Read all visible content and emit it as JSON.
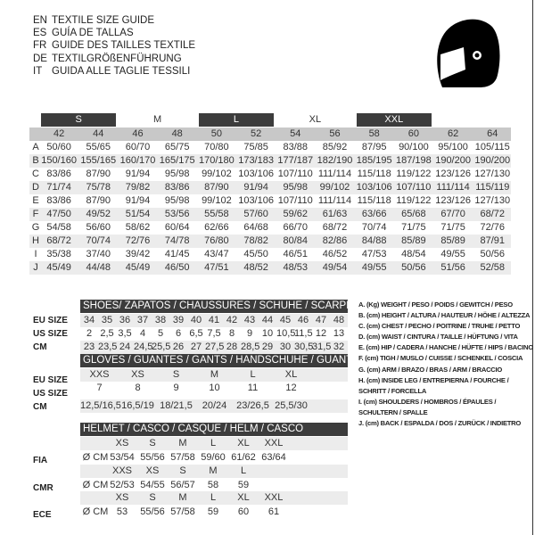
{
  "titles": [
    {
      "lang": "EN",
      "text": "TEXTILE SIZE GUIDE"
    },
    {
      "lang": "ES",
      "text": "GUÍA DE TALLAS"
    },
    {
      "lang": "FR",
      "text": "GUIDE DES TAILLES TEXTILE"
    },
    {
      "lang": "DE",
      "text": "TEXTILGRÖßENFÜHRUNG"
    },
    {
      "lang": "IT",
      "text": "GUIDA ALLE TAGLIE TESSILI"
    }
  ],
  "icon": "helmet-icon",
  "textile": {
    "size_bands": [
      "S",
      "M",
      "L",
      "XL",
      "XXL"
    ],
    "sizes": [
      "42",
      "44",
      "46",
      "48",
      "50",
      "52",
      "54",
      "56",
      "58",
      "60",
      "62",
      "64"
    ],
    "rows": [
      {
        "label": "A",
        "values": [
          "50/60",
          "55/65",
          "60/70",
          "65/75",
          "70/80",
          "75/85",
          "83/88",
          "85/92",
          "87/95",
          "90/100",
          "95/100",
          "105/115"
        ]
      },
      {
        "label": "B",
        "values": [
          "150/160",
          "155/165",
          "160/170",
          "165/175",
          "170/180",
          "173/183",
          "177/187",
          "182/190",
          "185/195",
          "187/198",
          "190/200",
          "190/200"
        ]
      },
      {
        "label": "C",
        "values": [
          "83/86",
          "87/90",
          "91/94",
          "95/98",
          "99/102",
          "103/106",
          "107/110",
          "111/114",
          "115/118",
          "119/122",
          "123/126",
          "127/130"
        ]
      },
      {
        "label": "D",
        "values": [
          "71/74",
          "75/78",
          "79/82",
          "83/86",
          "87/90",
          "91/94",
          "95/98",
          "99/102",
          "103/106",
          "107/110",
          "111/114",
          "115/119"
        ]
      },
      {
        "label": "E",
        "values": [
          "83/86",
          "87/90",
          "91/94",
          "95/98",
          "99/102",
          "103/106",
          "107/110",
          "111/114",
          "115/118",
          "119/122",
          "123/126",
          "127/130"
        ]
      },
      {
        "label": "F",
        "values": [
          "47/50",
          "49/52",
          "51/54",
          "53/56",
          "55/58",
          "57/60",
          "59/62",
          "61/63",
          "63/66",
          "65/68",
          "67/70",
          "68/72"
        ]
      },
      {
        "label": "G",
        "values": [
          "54/58",
          "56/60",
          "58/62",
          "60/64",
          "62/66",
          "64/68",
          "66/70",
          "68/72",
          "70/74",
          "71/75",
          "71/75",
          "72/76"
        ]
      },
      {
        "label": "H",
        "values": [
          "68/72",
          "70/74",
          "72/76",
          "74/78",
          "76/80",
          "78/82",
          "80/84",
          "82/86",
          "84/88",
          "85/89",
          "85/89",
          "87/91"
        ]
      },
      {
        "label": "I",
        "values": [
          "35/38",
          "37/40",
          "39/42",
          "41/45",
          "43/47",
          "45/50",
          "46/51",
          "46/52",
          "47/53",
          "48/54",
          "49/55",
          "50/56"
        ]
      },
      {
        "label": "J",
        "values": [
          "45/49",
          "44/48",
          "45/49",
          "46/50",
          "47/51",
          "48/52",
          "48/53",
          "49/54",
          "49/55",
          "50/56",
          "51/56",
          "52/58"
        ]
      }
    ]
  },
  "shoes": {
    "title": "SHOES/ ZAPATOS / CHAUSSURES / SCHUHE / SCARPE",
    "rows": [
      {
        "label": "EU SIZE",
        "values": [
          "34",
          "35",
          "36",
          "37",
          "38",
          "39",
          "40",
          "41",
          "42",
          "43",
          "44",
          "45",
          "46",
          "47",
          "48"
        ]
      },
      {
        "label": "US SIZE",
        "values": [
          "2",
          "2,5",
          "3,5",
          "4",
          "5",
          "6",
          "6,5",
          "7,5",
          "8",
          "9",
          "10",
          "10,5",
          "11,5",
          "12",
          "13"
        ]
      },
      {
        "label": "CM",
        "values": [
          "23",
          "23,5",
          "24",
          "24,5",
          "25,5",
          "26",
          "27",
          "27,5",
          "28",
          "28,5",
          "29",
          "30",
          "30,5",
          "31,5",
          "32"
        ]
      }
    ]
  },
  "gloves": {
    "title": "GLOVES / GUANTES / GANTS / HANDSCHUHE / GUANTI",
    "rows": [
      {
        "label": "EU SIZE",
        "values": [
          "XXS",
          "XS",
          "S",
          "M",
          "L",
          "XL"
        ]
      },
      {
        "label": "US SIZE",
        "values": [
          "7",
          "8",
          "9",
          "10",
          "11",
          "12"
        ]
      },
      {
        "label": "CM",
        "values": [
          "12,5/16,5",
          "16,5/19",
          "18/21,5",
          "20/24",
          "23/26,5",
          "25,5/30"
        ]
      }
    ]
  },
  "helmet": {
    "title": "HELMET / CASCO / CASQUE / HELM / CASCO",
    "unit": "Ø CM",
    "groups": [
      {
        "label": "FIA",
        "sizes": [
          "XS",
          "S",
          "M",
          "L",
          "XL",
          "XXL"
        ],
        "values": [
          "53/54",
          "55/56",
          "57/58",
          "59/60",
          "61/62",
          "63/64"
        ]
      },
      {
        "label": "CMR",
        "sizes": [
          "XXS",
          "XS",
          "S",
          "M",
          "L"
        ],
        "values": [
          "52/53",
          "54/55",
          "56/57",
          "58",
          "59"
        ]
      },
      {
        "label": "ECE",
        "sizes": [
          "XS",
          "S",
          "M",
          "L",
          "XL",
          "XXL"
        ],
        "values": [
          "53",
          "55/56",
          "57/58",
          "59",
          "60",
          "61"
        ]
      }
    ]
  },
  "legend": [
    "A. (Kg) WEIGHT / PESO / POIDS / GEWITCH / PESO",
    "B. (cm) HEIGHT / ALTURA / HAUTEUR / HÖHE / ALTEZZA",
    "C. (cm) CHEST / PECHO / POITRINE / TRUHE / PETTO",
    "D. (cm) WAIST / CINTURA / TAILLE / HÜFTUNG / VITA",
    "E. (cm) HIP / CADERA / HANCHE / HÜFTE / HIPS /  BACINO",
    "F.  (cm) TIGH / MUSLO / CUISSE / SCHENKEL / COSCIA",
    "G. (cm) ARM  / BRAZO / BRAS / ARM / BRACCIO",
    "H. (cm) INSIDE LEG / ENTREPIERNA / FOURCHE /",
    "SCHRITT / FORCELLA",
    "I.  (cm) SHOULDERS / HOMBROS / ÉPAULES /",
    "SCHULTERN / SPALLE",
    "J. (cm) BACK / ESPALDA / DOS / ZURÜCK / INDIETRO"
  ]
}
